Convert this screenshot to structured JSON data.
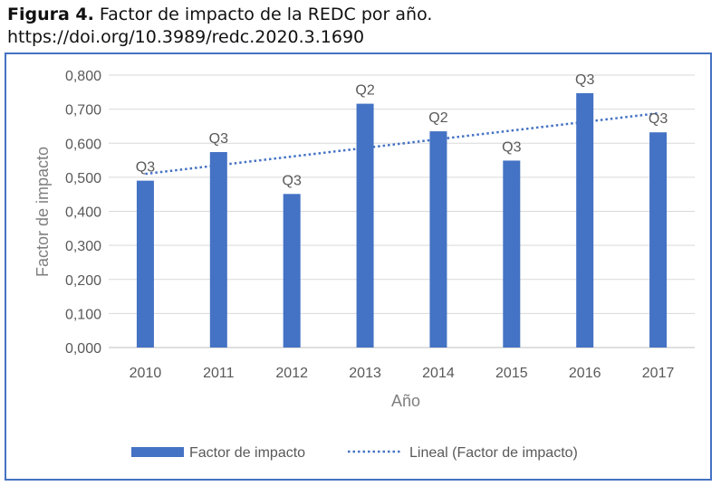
{
  "caption": {
    "lead": "Figura 4.",
    "title": "Factor de impacto de la REDC por año.",
    "doi": "https://doi.org/10.3989/redc.2020.3.1690"
  },
  "colors": {
    "bar": "#4472c4",
    "frame": "#4472c4",
    "grid": "#d9d9d9",
    "trend": "#4472c4"
  },
  "chart_data": {
    "type": "bar",
    "categories": [
      "2010",
      "2011",
      "2012",
      "2013",
      "2014",
      "2015",
      "2016",
      "2017"
    ],
    "series": [
      {
        "name": "Factor de impacto",
        "values": [
          0.49,
          0.574,
          0.451,
          0.716,
          0.635,
          0.549,
          0.747,
          0.632
        ]
      }
    ],
    "annotations": [
      "Q3",
      "Q3",
      "Q3",
      "Q2",
      "Q2",
      "Q3",
      "Q3",
      "Q3"
    ],
    "trendline": {
      "name": "Lineal (Factor de impacto)",
      "style": "dotted",
      "start": 0.51,
      "end": 0.688
    },
    "xlabel": "Año",
    "ylabel": "Factor de impacto",
    "ylim": [
      0,
      0.8
    ],
    "yticks": [
      "0,000",
      "0,100",
      "0,200",
      "0,300",
      "0,400",
      "0,500",
      "0,600",
      "0,700",
      "0,800"
    ],
    "grid": true,
    "legend_position": "bottom"
  }
}
